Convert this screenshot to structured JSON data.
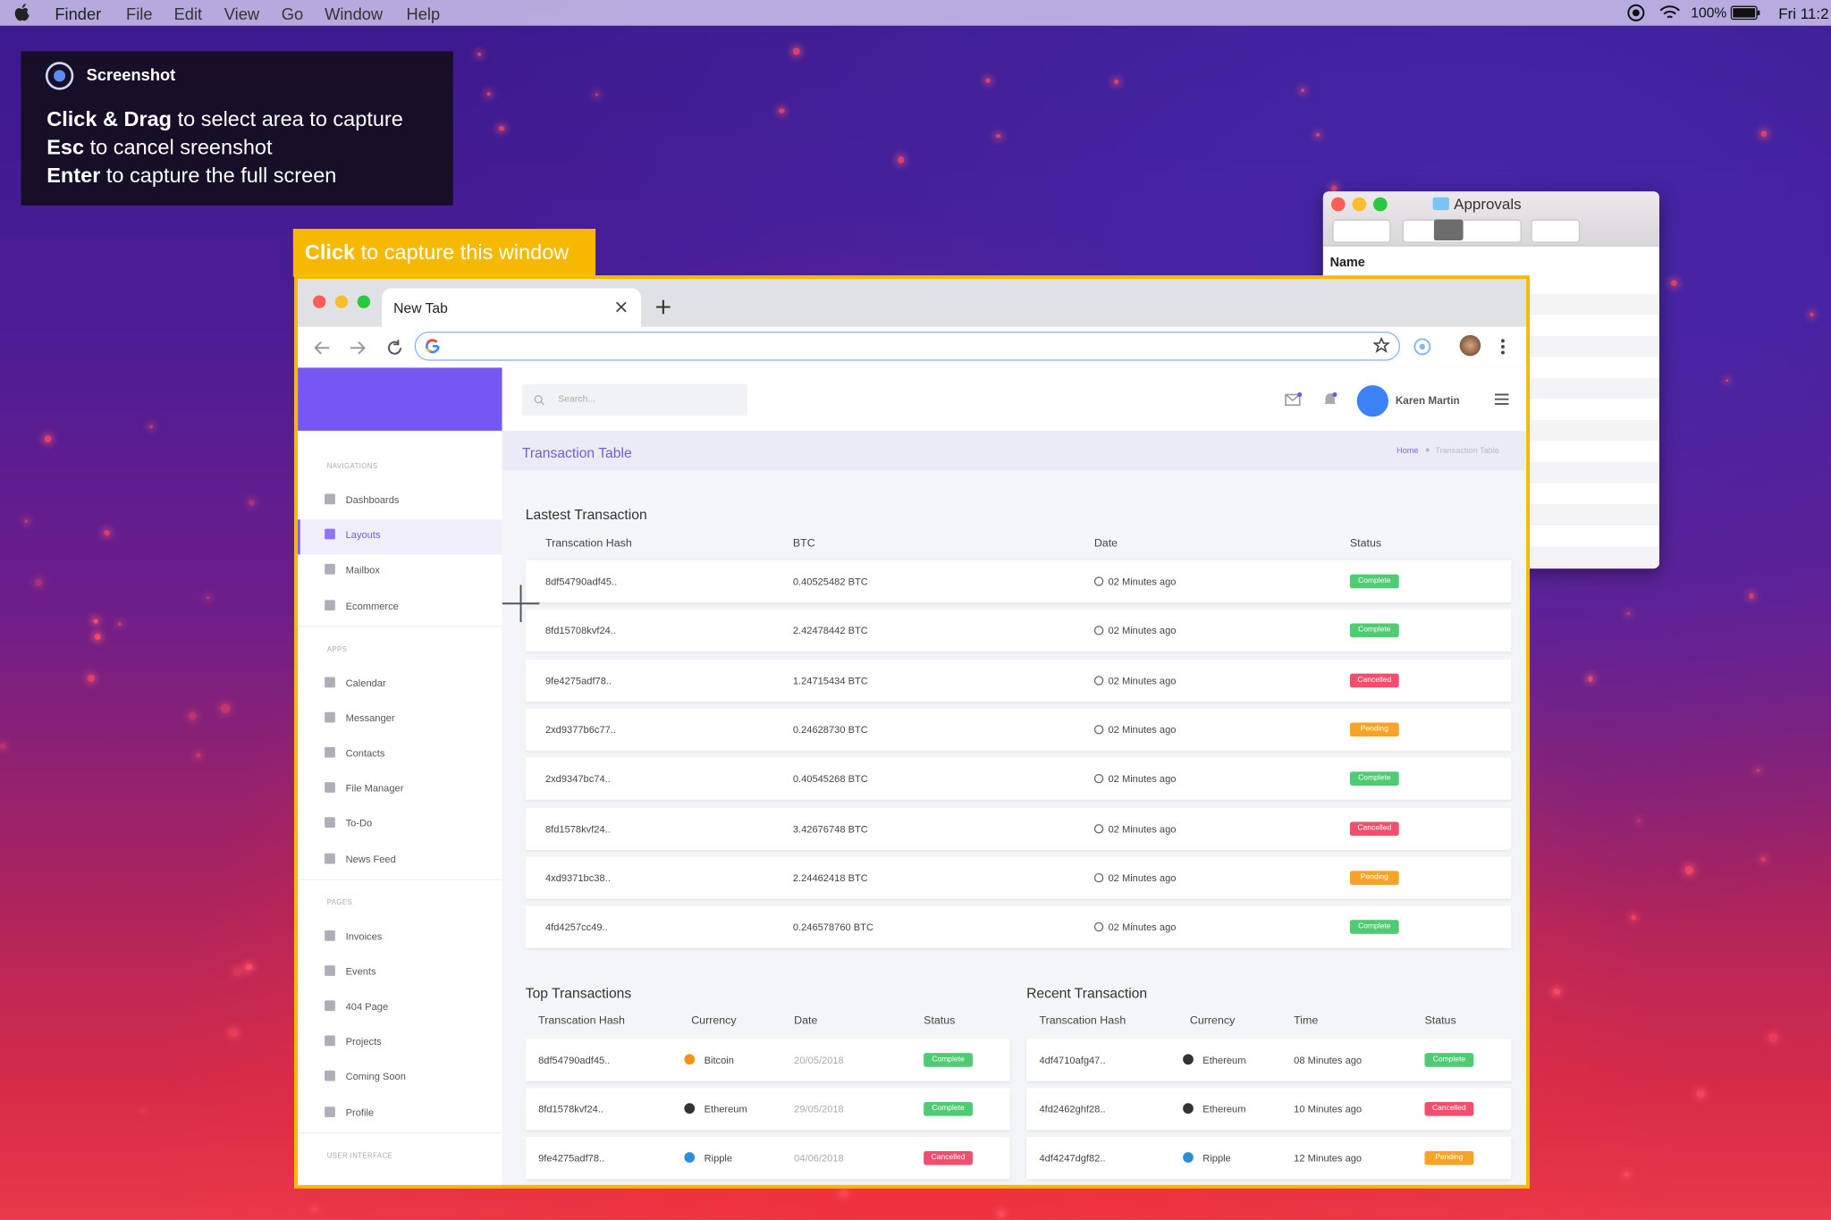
{
  "menubar": {
    "items": [
      "Finder",
      "File",
      "Edit",
      "View",
      "Go",
      "Window",
      "Help"
    ],
    "battery": "100%",
    "clock": "Fri 11:2"
  },
  "screenshot_hint": {
    "title": "Screenshot",
    "lines": [
      {
        "key": "Click & Drag",
        "text": "to select area to capture"
      },
      {
        "key": "Esc",
        "text": "to cancel sreenshot"
      },
      {
        "key": "Enter",
        "text": "to capture the full screen"
      }
    ]
  },
  "capture_label": {
    "key": "Click",
    "text": "to capture this window"
  },
  "finder_window": {
    "title": "Approvals",
    "column": "Name"
  },
  "browser": {
    "tab": "New Tab"
  },
  "app": {
    "search_placeholder": "Search...",
    "user": "Karen Martin",
    "page_title": "Transaction Table",
    "breadcrumb": [
      "Home",
      "Transaction Table"
    ],
    "sidebar": {
      "active_item": "Layouts",
      "sections": [
        {
          "heading": "NAVIGATIONS",
          "items": [
            "Dashboards",
            "Layouts",
            "Mailbox",
            "Ecommerce"
          ]
        },
        {
          "heading": "APPS",
          "items": [
            "Calendar",
            "Messanger",
            "Contacts",
            "File Manager",
            "To-Do",
            "News Feed"
          ]
        },
        {
          "heading": "PAGES",
          "items": [
            "Invoices",
            "Events",
            "404 Page",
            "Projects",
            "Coming Soon",
            "Profile"
          ]
        },
        {
          "heading": "USER INTERFACE",
          "items": []
        }
      ]
    },
    "latest": {
      "title": "Lastest Transaction",
      "columns": [
        "Transcation Hash",
        "BTC",
        "Date",
        "Status"
      ],
      "rows": [
        {
          "hash": "8df54790adf45..",
          "btc": "0.40525482 BTC",
          "date": "02 Minutes ago",
          "status": "Complete",
          "status_color": "#4fcb73"
        },
        {
          "hash": "8fd15708kvf24..",
          "btc": "2.42478442 BTC",
          "date": "02 Minutes ago",
          "status": "Complete",
          "status_color": "#4fcb73"
        },
        {
          "hash": "9fe4275adf78..",
          "btc": "1.24715434 BTC",
          "date": "02 Minutes ago",
          "status": "Cancelled",
          "status_color": "#f0506e"
        },
        {
          "hash": "2xd9377b6c77..",
          "btc": "0.24628730 BTC",
          "date": "02 Minutes ago",
          "status": "Pending",
          "status_color": "#f6a327"
        },
        {
          "hash": "2xd9347bc74..",
          "btc": "0.40545268 BTC",
          "date": "02 Minutes ago",
          "status": "Complete",
          "status_color": "#4fcb73"
        },
        {
          "hash": "8fd1578kvf24..",
          "btc": "3.42676748 BTC",
          "date": "02 Minutes ago",
          "status": "Cancelled",
          "status_color": "#f0506e"
        },
        {
          "hash": "4xd9371bc38..",
          "btc": "2.24462418 BTC",
          "date": "02 Minutes ago",
          "status": "Pending",
          "status_color": "#f6a327"
        },
        {
          "hash": "4fd4257cc49..",
          "btc": "0.246578760 BTC",
          "date": "02 Minutes ago",
          "status": "Complete",
          "status_color": "#4fcb73"
        }
      ]
    },
    "top": {
      "title": "Top Transactions",
      "columns": [
        "Transcation Hash",
        "Currency",
        "Date",
        "Status"
      ],
      "rows": [
        {
          "hash": "8df54790adf45..",
          "currency": "Bitcoin",
          "currency_color": "#f7931a",
          "date": "20/05/2018",
          "status": "Complete",
          "status_color": "#4fcb73"
        },
        {
          "hash": "8fd1578kvf24..",
          "currency": "Ethereum",
          "currency_color": "#333333",
          "date": "29/05/2018",
          "status": "Complete",
          "status_color": "#4fcb73"
        },
        {
          "hash": "9fe4275adf78..",
          "currency": "Ripple",
          "currency_color": "#2a8fd8",
          "date": "04/06/2018",
          "status": "Cancelled",
          "status_color": "#f0506e"
        }
      ]
    },
    "recent": {
      "title": "Recent Transaction",
      "columns": [
        "Transcation Hash",
        "Currency",
        "Time",
        "Status"
      ],
      "rows": [
        {
          "hash": "4df4710afg47..",
          "currency": "Ethereum",
          "currency_color": "#333333",
          "date": "08 Minutes ago",
          "status": "Complete",
          "status_color": "#4fcb73"
        },
        {
          "hash": "4fd2462ghf28..",
          "currency": "Ethereum",
          "currency_color": "#333333",
          "date": "10 Minutes ago",
          "status": "Cancelled",
          "status_color": "#f0506e"
        },
        {
          "hash": "4df4247dgf82..",
          "currency": "Ripple",
          "currency_color": "#2a8fd8",
          "date": "12 Minutes ago",
          "status": "Pending",
          "status_color": "#f6a327"
        }
      ]
    }
  }
}
